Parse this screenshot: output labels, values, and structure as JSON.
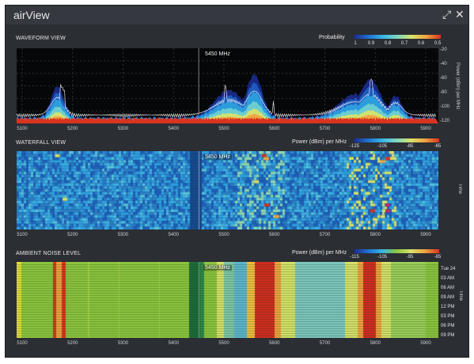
{
  "window": {
    "title": "airView",
    "expand_icon": "expand-icon",
    "close_icon": "close-icon",
    "expand_glyph": "⤢",
    "close_glyph": "✕"
  },
  "colors": {
    "window_bg": "#2b2e33",
    "titlebar_bg": "#35383e",
    "plot_bg": "#050708",
    "waterfall_base": "#2a7fc4",
    "noise_green": "#8cc63f",
    "noise_red": "#d12b1f",
    "noise_dark_green": "#1d6b3a"
  },
  "waveform": {
    "section_title": "WAVEFORM VIEW",
    "legend_title": "Probability",
    "legend_ticks": [
      "1",
      "0.9",
      "0.8",
      "0.7",
      "0.6",
      "0.5"
    ],
    "freq_marker": "5450 MHz",
    "y_axis_label": "Power (dBm) per MHz",
    "y_ticks": [
      "-20",
      "-40",
      "-60",
      "-80",
      "-100",
      "-120"
    ],
    "x_ticks": [
      "5100",
      "5200",
      "5300",
      "5400",
      "5500",
      "5600",
      "5700",
      "5800",
      "5900"
    ]
  },
  "waterfall": {
    "section_title": "WATERFALL VIEW",
    "legend_title": "Power (dBm) per MHz",
    "legend_ticks": [
      "-125",
      "-105",
      "-85",
      "-65"
    ],
    "freq_marker": "5450 MHz",
    "y_axis_label": "Time",
    "x_ticks": [
      "5100",
      "5200",
      "5300",
      "5400",
      "5500",
      "5600",
      "5700",
      "5800",
      "5900"
    ]
  },
  "noise": {
    "section_title": "AMBIENT NOISE LEVEL",
    "legend_title": "Power (dBm) per MHz",
    "legend_ticks": [
      "-115",
      "-105",
      "-95",
      "-85"
    ],
    "freq_marker": "5450 MHz",
    "y_axis_label": "Time",
    "time_labels": [
      "Tue 24",
      "03 AM",
      "06 AM",
      "09 AM",
      "12 PM",
      "03 PM",
      "06 PM",
      "09 PM"
    ],
    "x_ticks": [
      "5100",
      "5200",
      "5300",
      "5400",
      "5500",
      "5600",
      "5700",
      "5800",
      "5900"
    ]
  }
}
